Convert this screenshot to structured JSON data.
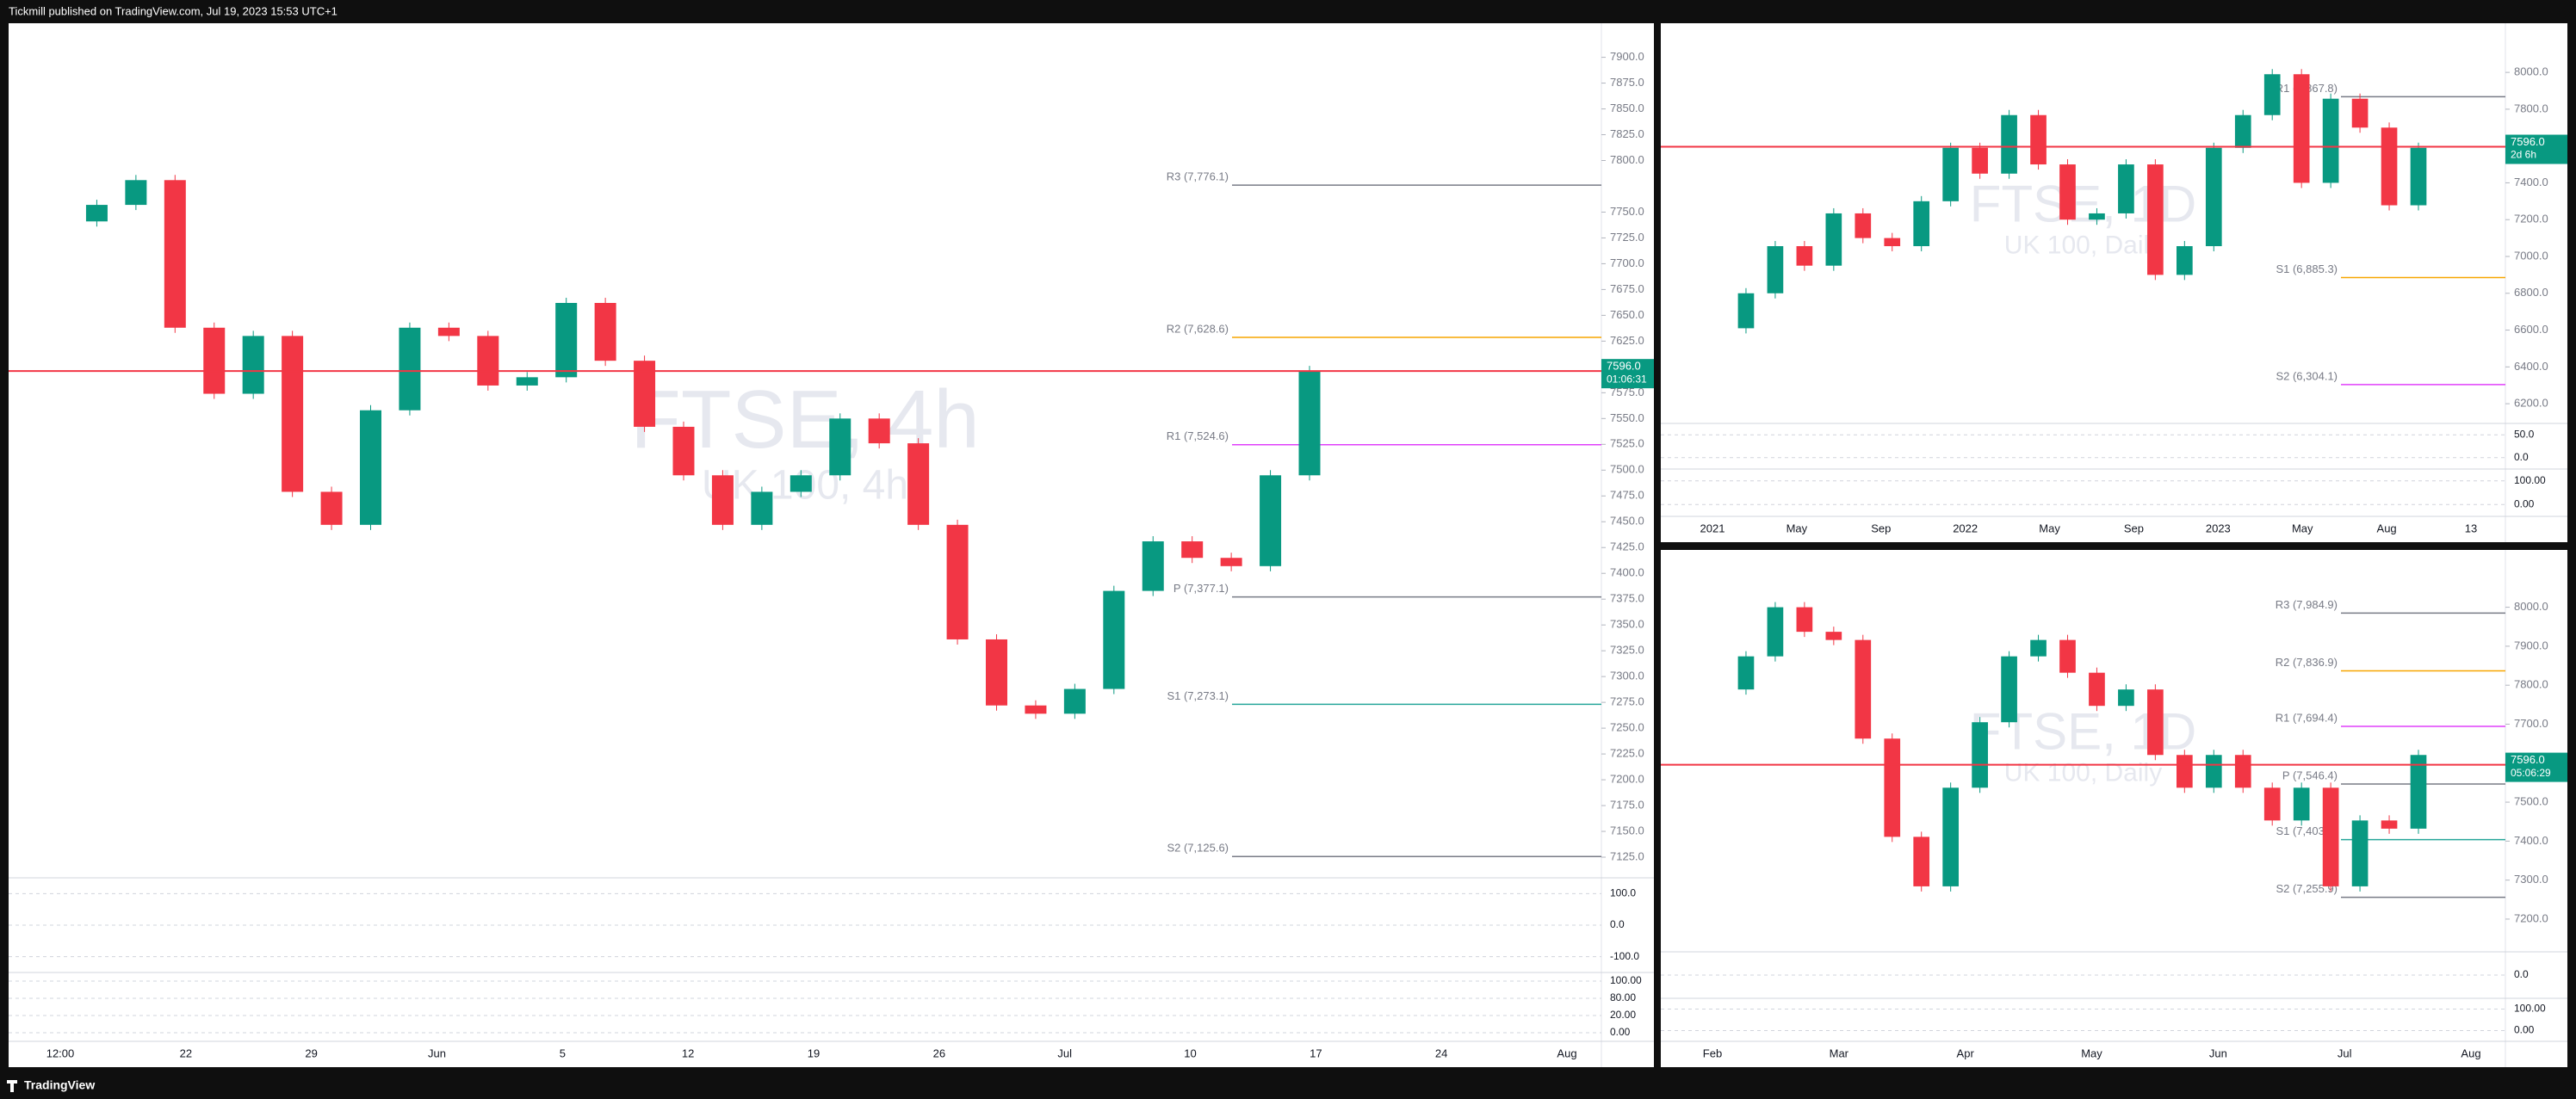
{
  "header": {
    "text": "Tickmill published on TradingView.com, Jul 19, 2023 15:53 UTC+1"
  },
  "footer": {
    "brand": "TradingView"
  },
  "panels": [
    {
      "type": "candlestick",
      "watermark": "FTSE, 4h",
      "watermark_sub": "UK 100, 4h",
      "closes": [
        7741,
        7757,
        7781,
        7638,
        7574,
        7630,
        7479,
        7447,
        7558,
        7638,
        7630,
        7582,
        7590,
        7662,
        7606,
        7542,
        7495,
        7447,
        7479,
        7495,
        7550,
        7526,
        7447,
        7336,
        7272,
        7264,
        7288,
        7383,
        7431,
        7415,
        7407,
        7495,
        7596
      ],
      "ylim": [
        7105,
        7933
      ],
      "yticks": [
        {
          "value": 7125,
          "label": "7125.0"
        },
        {
          "value": 7150,
          "label": "7150.0"
        },
        {
          "value": 7175,
          "label": "7175.0"
        },
        {
          "value": 7200,
          "label": "7200.0"
        },
        {
          "value": 7225,
          "label": "7225.0"
        },
        {
          "value": 7250,
          "label": "7250.0"
        },
        {
          "value": 7275,
          "label": "7275.0"
        },
        {
          "value": 7300,
          "label": "7300.0"
        },
        {
          "value": 7325,
          "label": "7325.0"
        },
        {
          "value": 7350,
          "label": "7350.0"
        },
        {
          "value": 7375,
          "label": "7375.0"
        },
        {
          "value": 7400,
          "label": "7400.0"
        },
        {
          "value": 7425,
          "label": "7425.0"
        },
        {
          "value": 7450,
          "label": "7450.0"
        },
        {
          "value": 7475,
          "label": "7475.0"
        },
        {
          "value": 7500,
          "label": "7500.0"
        },
        {
          "value": 7525,
          "label": "7525.0"
        },
        {
          "value": 7550,
          "label": "7550.0"
        },
        {
          "value": 7575,
          "label": "7575.0"
        },
        {
          "value": 7625,
          "label": "7625.0"
        },
        {
          "value": 7650,
          "label": "7650.0"
        },
        {
          "value": 7675,
          "label": "7675.0"
        },
        {
          "value": 7700,
          "label": "7700.0"
        },
        {
          "value": 7725,
          "label": "7725.0"
        },
        {
          "value": 7750,
          "label": "7750.0"
        },
        {
          "value": 7800,
          "label": "7800.0"
        },
        {
          "value": 7825,
          "label": "7825.0"
        },
        {
          "value": 7850,
          "label": "7850.0"
        },
        {
          "value": 7875,
          "label": "7875.0"
        },
        {
          "value": 7900,
          "label": "7900.0"
        }
      ],
      "pivots": [
        {
          "label": "R3 (7,776.1)",
          "value": 7776.1
        },
        {
          "label": "R2 (7,628.6)",
          "value": 7628.6
        },
        {
          "label": "R1 (7,524.6)",
          "value": 7524.6
        },
        {
          "label": "P (7,377.1)",
          "value": 7377.1
        },
        {
          "label": "S1 (7,273.1)",
          "value": 7273.1
        },
        {
          "label": "S2 (7,125.6)",
          "value": 7125.6
        }
      ],
      "price_label": {
        "value": 7596.0,
        "label": "7596.0"
      },
      "countdown": "01:06:31",
      "xlabels": [
        "12:00",
        "22",
        "29",
        "Jun",
        "5",
        "12",
        "19",
        "26",
        "Jul",
        "10",
        "17",
        "24",
        "Aug"
      ],
      "osc_labels": [
        "100.0",
        "0.0",
        "-100.0"
      ],
      "osc2_labels": [
        "100.00",
        "80.00",
        "20.00",
        "0.00"
      ]
    },
    {
      "type": "candlestick",
      "watermark": "FTSE, 1D",
      "watermark_sub": "UK 100, Daily",
      "closes": [
        6610,
        6800,
        7056,
        6950,
        7234,
        7100,
        7056,
        7300,
        7590,
        7450,
        7768,
        7500,
        7200,
        7234,
        7500,
        6900,
        7056,
        7590,
        7768,
        7990,
        7400,
        7857,
        7700,
        7278,
        7590
      ],
      "ylim": [
        6093,
        8267
      ],
      "yticks": [
        {
          "value": 6200,
          "label": "6200.0"
        },
        {
          "value": 6400,
          "label": "6400.0"
        },
        {
          "value": 6600,
          "label": "6600.0"
        },
        {
          "value": 6800,
          "label": "6800.0"
        },
        {
          "value": 7000,
          "label": "7000.0"
        },
        {
          "value": 7200,
          "label": "7200.0"
        },
        {
          "value": 7400,
          "label": "7400.0"
        },
        {
          "value": 7800,
          "label": "7800.0"
        },
        {
          "value": 8000,
          "label": "8000.0"
        }
      ],
      "pivots": [
        {
          "label": "R1 (7,867.8)",
          "value": 7867.8
        },
        {
          "label": "S1 (6,885.3)",
          "value": 6885.3
        },
        {
          "label": "S2 (6,304.1)",
          "value": 6304.1
        }
      ],
      "price_label": {
        "value": 7596.0,
        "label": "7596.0"
      },
      "countdown": "2d 6h",
      "xlabels": [
        "2021",
        "May",
        "Sep",
        "2022",
        "May",
        "Sep",
        "2023",
        "May",
        "Aug",
        "13"
      ],
      "osc_labels": [
        "50.0",
        "0.0"
      ],
      "osc2_labels": [
        "100.00",
        "0.00"
      ]
    },
    {
      "type": "candlestick",
      "watermark": "FTSE, 1D",
      "watermark_sub": "UK 100, Daily",
      "closes": [
        7789,
        7874,
        8000,
        7937,
        7916,
        7663,
        7411,
        7284,
        7537,
        7705,
        7874,
        7916,
        7832,
        7747,
        7789,
        7621,
        7537,
        7621,
        7537,
        7453,
        7537,
        7284,
        7453,
        7432,
        7621
      ],
      "ylim": [
        7116,
        8147
      ],
      "yticks": [
        {
          "value": 7200,
          "label": "7200.0"
        },
        {
          "value": 7300,
          "label": "7300.0"
        },
        {
          "value": 7400,
          "label": "7400.0"
        },
        {
          "value": 7500,
          "label": "7500.0"
        },
        {
          "value": 7700,
          "label": "7700.0"
        },
        {
          "value": 7800,
          "label": "7800.0"
        },
        {
          "value": 7900,
          "label": "7900.0"
        },
        {
          "value": 8000,
          "label": "8000.0"
        }
      ],
      "pivots": [
        {
          "label": "R3 (7,984.9)",
          "value": 7984.9
        },
        {
          "label": "R2 (7,836.9)",
          "value": 7836.9
        },
        {
          "label": "R1 (7,694.4)",
          "value": 7694.4
        },
        {
          "label": "P (7,546.4)",
          "value": 7546.4
        },
        {
          "label": "S1 (7,403.9)",
          "value": 7403.9
        },
        {
          "label": "S2 (7,255.9)",
          "value": 7255.9
        }
      ],
      "price_label": {
        "value": 7596.0,
        "label": "7596.0"
      },
      "countdown": "05:06:29",
      "xlabels": [
        "Feb",
        "Mar",
        "Apr",
        "May",
        "Jun",
        "Jul",
        "Aug"
      ],
      "osc_labels": [
        "0.0"
      ],
      "osc2_labels": [
        "100.00",
        "0.00"
      ]
    }
  ]
}
